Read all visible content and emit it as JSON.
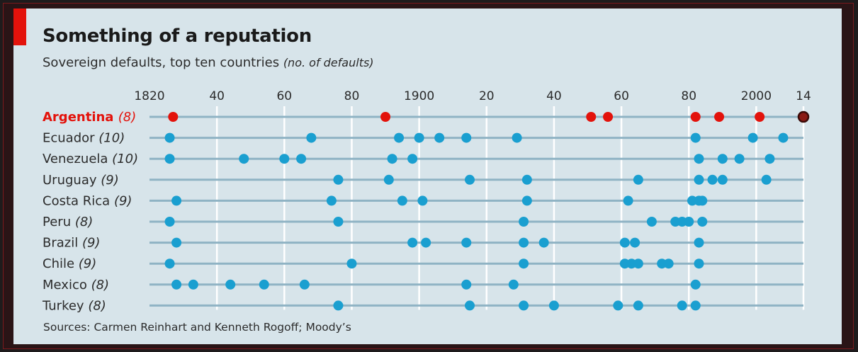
{
  "title": "Something of a reputation",
  "subtitle": "Sovereign defaults, top ten countries",
  "subtitle_unit": "(no. of defaults)",
  "source": "Sources: Carmen Reinhart and Kenneth Rogoff; Moody’s",
  "colors": {
    "background": "#d7e4ea",
    "dot": "#1a9fd0",
    "highlight": "#e3120b",
    "highlight_last_fill": "#8a1a14",
    "line": "#8fb3c4",
    "grid": "#ffffff",
    "text": "#2b2b2b"
  },
  "chart_data": {
    "type": "scatter",
    "x_axis": {
      "range": [
        1820,
        2014
      ],
      "ticks": [
        1820,
        1840,
        1860,
        1880,
        1900,
        1920,
        1940,
        1960,
        1980,
        2000,
        2014
      ],
      "tick_labels": [
        "1820",
        "40",
        "60",
        "80",
        "1900",
        "20",
        "40",
        "60",
        "80",
        "2000",
        "14"
      ],
      "position": "top",
      "gridlines": true
    },
    "series": [
      {
        "name": "Argentina",
        "count": "(8)",
        "highlight": true,
        "x": [
          1827,
          1890,
          1951,
          1956,
          1982,
          1989,
          2001,
          2014
        ]
      },
      {
        "name": "Ecuador",
        "count": "(10)",
        "x": [
          1826,
          1868,
          1894,
          1900,
          1906,
          1914,
          1929,
          1982,
          1999,
          2008
        ]
      },
      {
        "name": "Venezuela",
        "count": "(10)",
        "x": [
          1826,
          1848,
          1860,
          1865,
          1892,
          1898,
          1983,
          1990,
          1995,
          2004
        ]
      },
      {
        "name": "Uruguay",
        "count": "(9)",
        "x": [
          1876,
          1891,
          1915,
          1932,
          1965,
          1983,
          1987,
          1990,
          2003
        ]
      },
      {
        "name": "Costa Rica",
        "count": "(9)",
        "x": [
          1828,
          1874,
          1895,
          1901,
          1932,
          1962,
          1981,
          1983,
          1984
        ]
      },
      {
        "name": "Peru",
        "count": "(8)",
        "x": [
          1826,
          1876,
          1931,
          1969,
          1976,
          1978,
          1980,
          1984
        ]
      },
      {
        "name": "Brazil",
        "count": "(9)",
        "x": [
          1828,
          1898,
          1902,
          1914,
          1931,
          1937,
          1961,
          1964,
          1983
        ]
      },
      {
        "name": "Chile",
        "count": "(9)",
        "x": [
          1826,
          1880,
          1931,
          1961,
          1963,
          1965,
          1972,
          1974,
          1983
        ]
      },
      {
        "name": "Mexico",
        "count": "(8)",
        "x": [
          1828,
          1833,
          1844,
          1854,
          1866,
          1914,
          1928,
          1982
        ]
      },
      {
        "name": "Turkey",
        "count": "(8)",
        "x": [
          1876,
          1915,
          1931,
          1940,
          1959,
          1965,
          1978,
          1982
        ]
      }
    ]
  }
}
